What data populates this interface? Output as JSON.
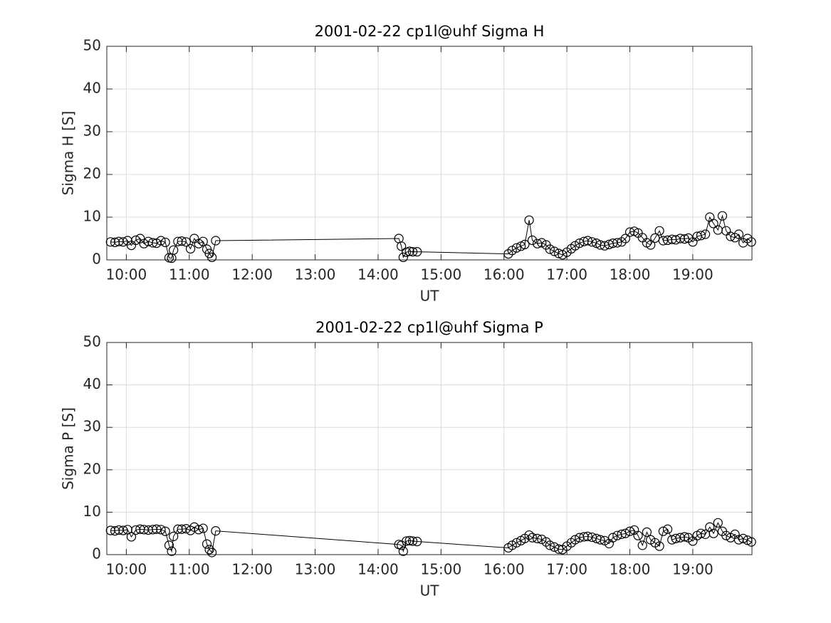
{
  "chart_data": [
    {
      "type": "line",
      "title": "2001-02-22  cp1l@uhf Sigma H",
      "xlabel": "UT",
      "ylabel": "Sigma H [S]",
      "x": [
        9.75,
        9.82,
        9.88,
        9.95,
        10.02,
        10.08,
        10.15,
        10.22,
        10.28,
        10.35,
        10.42,
        10.48,
        10.55,
        10.62,
        10.68,
        10.72,
        10.75,
        10.82,
        10.88,
        10.95,
        11.02,
        11.08,
        11.15,
        11.22,
        11.28,
        11.32,
        11.36,
        11.42,
        14.33,
        14.37,
        14.4,
        14.45,
        14.5,
        14.55,
        14.62,
        16.07,
        16.13,
        16.2,
        16.27,
        16.33,
        16.4,
        16.45,
        16.53,
        16.6,
        16.67,
        16.73,
        16.8,
        16.87,
        16.93,
        17.0,
        17.07,
        17.13,
        17.2,
        17.27,
        17.33,
        17.4,
        17.47,
        17.53,
        17.6,
        17.67,
        17.73,
        17.8,
        17.87,
        17.93,
        18.0,
        18.07,
        18.13,
        18.2,
        18.27,
        18.33,
        18.4,
        18.47,
        18.53,
        18.6,
        18.67,
        18.73,
        18.8,
        18.87,
        18.93,
        19.0,
        19.07,
        19.13,
        19.2,
        19.27,
        19.33,
        19.4,
        19.47,
        19.53,
        19.6,
        19.67,
        19.73,
        19.8,
        19.87,
        19.93
      ],
      "series": [
        {
          "color": "#000000",
          "marker": "circle",
          "values": [
            4.2,
            4.1,
            4.3,
            4.2,
            4.5,
            3.4,
            4.6,
            5.0,
            3.8,
            4.3,
            4.0,
            3.9,
            4.5,
            4.1,
            0.5,
            0.4,
            2.3,
            4.3,
            4.4,
            4.2,
            2.6,
            5.0,
            3.8,
            4.3,
            2.5,
            1.5,
            0.6,
            4.5,
            5.0,
            3.2,
            0.6,
            1.8,
            2.0,
            1.9,
            1.9,
            1.4,
            2.2,
            2.8,
            3.2,
            3.6,
            9.3,
            4.6,
            3.8,
            4.0,
            3.5,
            2.5,
            2.0,
            1.5,
            1.2,
            1.8,
            2.6,
            3.3,
            3.9,
            4.3,
            4.5,
            4.2,
            3.9,
            3.5,
            3.3,
            3.6,
            3.9,
            4.0,
            4.2,
            5.0,
            6.5,
            6.7,
            6.3,
            5.2,
            4.0,
            3.5,
            5.1,
            6.8,
            4.5,
            4.6,
            4.8,
            4.7,
            5.0,
            4.9,
            5.1,
            4.2,
            5.5,
            5.7,
            6.0,
            10.0,
            8.5,
            7.0,
            10.3,
            6.8,
            5.5,
            5.2,
            6.0,
            4.0,
            5.0,
            4.2
          ]
        }
      ],
      "xlim": [
        9.69,
        19.94
      ],
      "xticks": [
        {
          "value": 10,
          "label": "10:00"
        },
        {
          "value": 11,
          "label": "11:00"
        },
        {
          "value": 12,
          "label": "12:00"
        },
        {
          "value": 13,
          "label": "13:00"
        },
        {
          "value": 14,
          "label": "14:00"
        },
        {
          "value": 15,
          "label": "15:00"
        },
        {
          "value": 16,
          "label": "16:00"
        },
        {
          "value": 17,
          "label": "17:00"
        },
        {
          "value": 18,
          "label": "18:00"
        },
        {
          "value": 19,
          "label": "19:00"
        }
      ],
      "ylim": [
        0,
        50
      ],
      "yticks": [
        0,
        10,
        20,
        30,
        40,
        50
      ],
      "grid": true
    },
    {
      "type": "line",
      "title": "2001-02-22  cp1l@uhf Sigma P",
      "xlabel": "UT",
      "ylabel": "Sigma P [S]",
      "x": [
        9.75,
        9.82,
        9.88,
        9.95,
        10.02,
        10.08,
        10.15,
        10.22,
        10.28,
        10.35,
        10.42,
        10.48,
        10.55,
        10.62,
        10.68,
        10.72,
        10.75,
        10.82,
        10.88,
        10.95,
        11.02,
        11.08,
        11.15,
        11.22,
        11.28,
        11.32,
        11.36,
        11.42,
        14.33,
        14.37,
        14.4,
        14.45,
        14.5,
        14.55,
        14.62,
        16.07,
        16.13,
        16.2,
        16.27,
        16.33,
        16.4,
        16.45,
        16.53,
        16.6,
        16.67,
        16.73,
        16.8,
        16.87,
        16.93,
        17.0,
        17.07,
        17.13,
        17.2,
        17.27,
        17.33,
        17.4,
        17.47,
        17.53,
        17.6,
        17.67,
        17.73,
        17.8,
        17.87,
        17.93,
        18.0,
        18.07,
        18.13,
        18.2,
        18.27,
        18.33,
        18.4,
        18.47,
        18.53,
        18.6,
        18.67,
        18.73,
        18.8,
        18.87,
        18.93,
        19.0,
        19.07,
        19.13,
        19.2,
        19.27,
        19.33,
        19.4,
        19.47,
        19.53,
        19.6,
        19.67,
        19.73,
        19.8,
        19.87,
        19.93
      ],
      "series": [
        {
          "color": "#000000",
          "marker": "circle",
          "values": [
            5.7,
            5.6,
            5.8,
            5.7,
            5.9,
            4.2,
            5.8,
            6.0,
            5.9,
            5.8,
            5.9,
            6.0,
            5.9,
            5.5,
            2.2,
            0.8,
            4.3,
            6.0,
            6.0,
            6.1,
            5.7,
            6.5,
            5.9,
            6.2,
            2.5,
            1.2,
            0.5,
            5.6,
            2.4,
            2.2,
            0.8,
            3.2,
            3.3,
            3.2,
            3.1,
            1.6,
            2.2,
            2.8,
            3.3,
            3.8,
            4.6,
            4.0,
            3.8,
            3.6,
            3.0,
            2.2,
            1.8,
            1.3,
            1.2,
            2.0,
            2.8,
            3.5,
            4.0,
            4.2,
            4.3,
            4.1,
            3.8,
            3.5,
            3.3,
            2.6,
            4.0,
            4.5,
            4.8,
            5.0,
            5.5,
            5.8,
            4.5,
            2.2,
            5.3,
            3.5,
            2.8,
            2.0,
            5.5,
            6.0,
            3.5,
            3.8,
            4.0,
            4.2,
            4.0,
            3.2,
            4.5,
            5.0,
            4.8,
            6.5,
            5.0,
            7.5,
            5.5,
            4.5,
            4.0,
            4.8,
            3.5,
            3.8,
            3.4,
            3.0
          ]
        }
      ],
      "xlim": [
        9.69,
        19.94
      ],
      "xticks": [
        {
          "value": 10,
          "label": "10:00"
        },
        {
          "value": 11,
          "label": "11:00"
        },
        {
          "value": 12,
          "label": "12:00"
        },
        {
          "value": 13,
          "label": "13:00"
        },
        {
          "value": 14,
          "label": "14:00"
        },
        {
          "value": 15,
          "label": "15:00"
        },
        {
          "value": 16,
          "label": "16:00"
        },
        {
          "value": 17,
          "label": "17:00"
        },
        {
          "value": 18,
          "label": "18:00"
        },
        {
          "value": 19,
          "label": "19:00"
        }
      ],
      "ylim": [
        0,
        50
      ],
      "yticks": [
        0,
        10,
        20,
        30,
        40,
        50
      ],
      "grid": true
    }
  ]
}
